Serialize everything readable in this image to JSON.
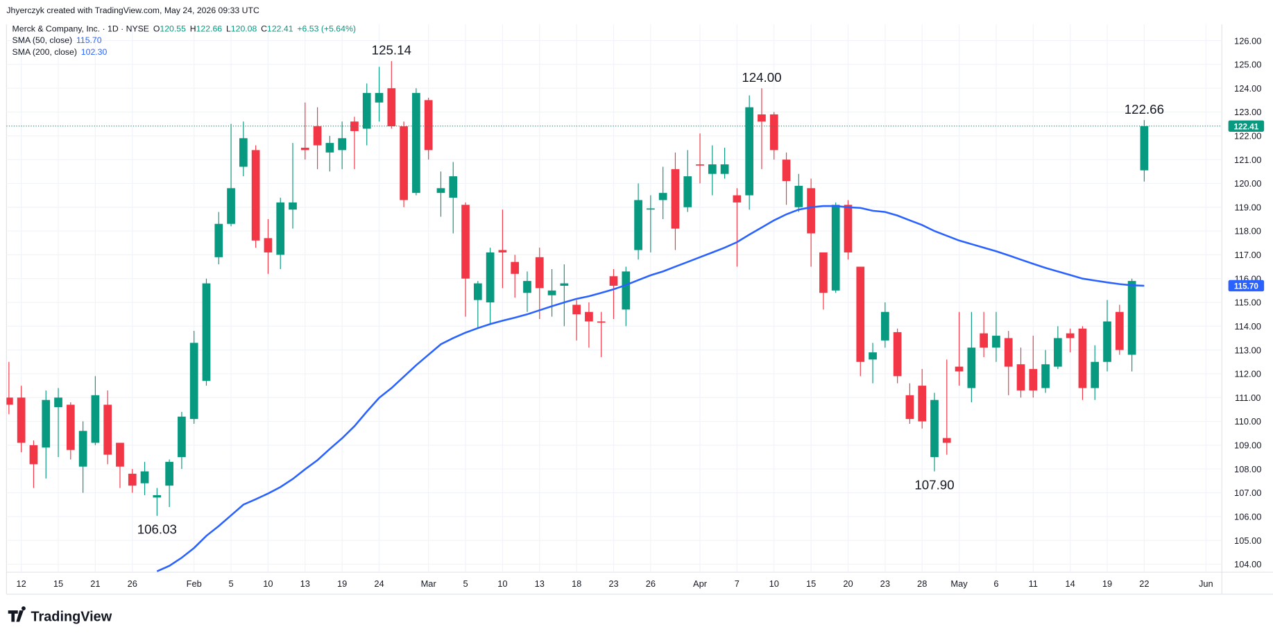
{
  "chart_data": {
    "type": "candlestick",
    "credit": "Jhyerczyk created with TradingView.com, May 24, 2026 09:33 UTC",
    "title": "Merck & Company, Inc. · 1D · NYSE",
    "ohlc_legend": [
      {
        "key": "O",
        "value": "120.55"
      },
      {
        "key": "H",
        "value": "122.66"
      },
      {
        "key": "L",
        "value": "120.08"
      },
      {
        "key": "C",
        "value": "122.41"
      }
    ],
    "change": "+6.53 (+5.64%)",
    "indicators": [
      {
        "name": "SMA (50, close)",
        "value": "115.70",
        "color": "#2962ff"
      },
      {
        "name": "SMA (200, close)",
        "value": "102.30",
        "color": "#2962ff"
      }
    ],
    "last_price_label": "122.41",
    "logo": "TradingView",
    "up_color": "#089981",
    "down_color": "#f23645",
    "categories": [
      null,
      "12",
      null,
      null,
      "15",
      null,
      null,
      "21",
      null,
      null,
      "26",
      null,
      null,
      null,
      null,
      "Feb",
      null,
      null,
      "5",
      null,
      null,
      "10",
      null,
      null,
      "13",
      null,
      null,
      "19",
      null,
      null,
      "24",
      null,
      null,
      null,
      "Mar",
      null,
      null,
      "5",
      null,
      null,
      "10",
      null,
      null,
      "13",
      null,
      null,
      "18",
      null,
      null,
      "23",
      null,
      null,
      "26",
      null,
      null,
      null,
      "Apr",
      null,
      null,
      "7",
      null,
      null,
      "10",
      null,
      null,
      "15",
      null,
      null,
      "20",
      null,
      null,
      "23",
      null,
      null,
      "28",
      null,
      null,
      "May",
      null,
      null,
      "6",
      null,
      null,
      "11",
      null,
      null,
      "14",
      null,
      null,
      "19",
      null,
      null,
      "22",
      null,
      null,
      null,
      null,
      "Jun"
    ],
    "open": [
      111.0,
      111.0,
      109.0,
      108.9,
      110.6,
      110.7,
      108.1,
      109.1,
      110.7,
      109.1,
      107.8,
      107.4,
      106.8,
      107.3,
      108.5,
      110.1,
      111.7,
      116.9,
      118.3,
      120.7,
      121.4,
      117.7,
      117.0,
      118.9,
      121.5,
      122.4,
      121.3,
      121.4,
      122.6,
      122.3,
      123.4,
      124.0,
      122.4,
      119.6,
      123.5,
      119.6,
      119.4,
      119.1,
      115.1,
      115.0,
      117.2,
      116.7,
      115.4,
      116.9,
      115.3,
      115.7,
      114.9,
      114.6,
      114.2,
      116.1,
      114.7,
      117.2,
      118.9,
      119.3,
      120.6,
      119.0,
      120.8,
      120.4,
      120.4,
      119.5,
      119.5,
      122.9,
      122.9,
      121.0,
      119.0,
      119.8,
      117.1,
      115.5,
      119.1,
      116.5,
      112.6,
      113.4,
      113.75,
      111.1,
      111.5,
      108.5,
      109.3,
      112.3,
      111.4,
      113.7,
      113.1,
      113.5,
      112.4,
      112.2,
      111.4,
      112.3,
      113.7,
      113.9,
      111.4,
      112.5,
      114.6,
      112.8,
      120.55,
      null,
      null,
      null,
      null,
      null
    ],
    "high": [
      112.5,
      111.5,
      109.2,
      111.3,
      111.4,
      110.8,
      110.0,
      111.9,
      111.3,
      109.1,
      108.0,
      108.3,
      107.2,
      108.4,
      110.4,
      113.8,
      116.0,
      118.8,
      122.5,
      122.6,
      121.6,
      118.5,
      119.4,
      121.7,
      123.4,
      123.2,
      122.0,
      122.6,
      122.8,
      124.2,
      124.9,
      125.14,
      122.6,
      124.0,
      123.6,
      120.5,
      120.9,
      119.2,
      115.9,
      117.3,
      118.9,
      117.0,
      116.3,
      117.3,
      116.4,
      116.6,
      115.1,
      115.0,
      114.6,
      116.4,
      116.5,
      120.0,
      119.5,
      120.7,
      121.3,
      121.4,
      122.1,
      121.6,
      121.5,
      119.8,
      123.7,
      124.0,
      123.0,
      121.3,
      120.4,
      120.2,
      117.1,
      119.2,
      119.3,
      116.5,
      113.3,
      115.0,
      113.9,
      111.6,
      112.2,
      111.2,
      112.6,
      114.6,
      114.6,
      114.6,
      114.6,
      113.8,
      113.1,
      113.6,
      113.0,
      114.0,
      113.9,
      114.0,
      113.2,
      115.1,
      114.9,
      116.0,
      122.66,
      null,
      null,
      null,
      null,
      null
    ],
    "low": [
      110.3,
      108.7,
      107.2,
      107.6,
      108.5,
      108.4,
      107.0,
      109.0,
      108.2,
      107.2,
      107.0,
      106.9,
      106.03,
      106.4,
      108.0,
      109.9,
      111.5,
      116.6,
      118.2,
      120.3,
      117.3,
      116.2,
      116.4,
      118.1,
      121.0,
      120.6,
      120.5,
      120.6,
      120.6,
      121.6,
      122.6,
      122.3,
      119.0,
      119.5,
      121.0,
      118.6,
      117.9,
      114.4,
      113.9,
      114.1,
      115.6,
      115.2,
      114.6,
      114.3,
      114.4,
      114.0,
      113.4,
      113.1,
      112.7,
      114.3,
      114.0,
      116.8,
      117.1,
      118.5,
      117.2,
      118.8,
      120.0,
      119.5,
      120.2,
      116.5,
      118.9,
      120.6,
      121.0,
      119.1,
      118.8,
      116.5,
      114.7,
      115.4,
      116.8,
      111.9,
      111.6,
      113.1,
      111.6,
      109.9,
      109.7,
      107.9,
      108.6,
      111.5,
      110.8,
      112.7,
      112.5,
      111.1,
      111.0,
      111.0,
      111.2,
      112.2,
      112.9,
      110.9,
      110.9,
      112.1,
      112.8,
      112.1,
      120.08,
      null,
      null,
      null,
      null,
      null
    ],
    "close": [
      110.7,
      109.1,
      108.2,
      110.9,
      111.0,
      108.8,
      109.6,
      111.1,
      108.6,
      108.1,
      107.3,
      107.9,
      106.9,
      108.3,
      110.2,
      113.3,
      115.8,
      118.3,
      119.8,
      121.9,
      117.6,
      117.1,
      119.2,
      119.2,
      121.4,
      121.6,
      121.7,
      121.9,
      122.2,
      123.8,
      123.8,
      122.4,
      119.3,
      123.8,
      121.4,
      119.8,
      120.3,
      116.0,
      115.8,
      117.1,
      117.1,
      116.2,
      115.9,
      115.6,
      115.5,
      115.8,
      114.5,
      114.2,
      114.15,
      115.7,
      116.3,
      119.3,
      118.95,
      119.6,
      118.1,
      120.3,
      120.75,
      120.8,
      120.8,
      119.2,
      123.2,
      122.6,
      121.4,
      120.1,
      119.9,
      117.9,
      115.4,
      119.1,
      117.1,
      112.5,
      112.9,
      114.6,
      111.9,
      110.1,
      110.0,
      110.9,
      109.1,
      112.1,
      113.1,
      113.1,
      113.6,
      112.3,
      111.3,
      111.3,
      112.4,
      113.5,
      113.5,
      111.4,
      112.5,
      114.2,
      113.0,
      115.9,
      122.41,
      null,
      null,
      null,
      null,
      null
    ],
    "sma50": [
      null,
      null,
      null,
      null,
      null,
      null,
      null,
      null,
      null,
      null,
      null,
      null,
      103.7,
      103.93,
      104.27,
      104.68,
      105.19,
      105.6,
      106.05,
      106.5,
      106.73,
      106.97,
      107.24,
      107.58,
      107.99,
      108.37,
      108.84,
      109.29,
      109.8,
      110.41,
      110.99,
      111.4,
      111.88,
      112.36,
      112.8,
      113.24,
      113.5,
      113.73,
      113.92,
      114.09,
      114.23,
      114.36,
      114.5,
      114.67,
      114.84,
      115.0,
      115.15,
      115.26,
      115.4,
      115.55,
      115.73,
      115.94,
      116.14,
      116.3,
      116.5,
      116.7,
      116.9,
      117.1,
      117.3,
      117.53,
      117.85,
      118.15,
      118.45,
      118.7,
      118.9,
      119.0,
      119.05,
      119.05,
      119.0,
      118.97,
      118.85,
      118.8,
      118.65,
      118.45,
      118.25,
      118.0,
      117.8,
      117.6,
      117.45,
      117.3,
      117.15,
      116.98,
      116.8,
      116.62,
      116.45,
      116.3,
      116.15,
      116.0,
      115.92,
      115.84,
      115.77,
      115.72,
      115.7,
      null,
      null,
      null,
      null,
      null
    ],
    "high_labels": [
      null,
      null,
      null,
      null,
      null,
      null,
      null,
      null,
      null,
      null,
      null,
      null,
      null,
      null,
      null,
      null,
      null,
      null,
      null,
      null,
      null,
      null,
      null,
      null,
      null,
      null,
      null,
      null,
      null,
      null,
      null,
      "125.14",
      null,
      null,
      null,
      null,
      null,
      null,
      null,
      null,
      null,
      null,
      null,
      null,
      null,
      null,
      null,
      null,
      null,
      null,
      null,
      null,
      null,
      null,
      null,
      null,
      null,
      null,
      null,
      null,
      null,
      "124.00",
      null,
      null,
      null,
      null,
      null,
      null,
      null,
      null,
      null,
      null,
      null,
      null,
      null,
      null,
      null,
      null,
      null,
      null,
      null,
      null,
      null,
      null,
      null,
      null,
      null,
      null,
      null,
      null,
      null,
      null,
      "122.66",
      null,
      null,
      null,
      null,
      null
    ],
    "low_labels": [
      null,
      null,
      null,
      null,
      null,
      null,
      null,
      null,
      null,
      null,
      null,
      null,
      "106.03",
      null,
      null,
      null,
      null,
      null,
      null,
      null,
      null,
      null,
      null,
      null,
      null,
      null,
      null,
      null,
      null,
      null,
      null,
      null,
      null,
      null,
      null,
      null,
      null,
      null,
      null,
      null,
      null,
      null,
      null,
      null,
      null,
      null,
      null,
      null,
      null,
      null,
      null,
      null,
      null,
      null,
      null,
      null,
      null,
      null,
      null,
      null,
      null,
      null,
      null,
      null,
      null,
      null,
      null,
      null,
      null,
      null,
      null,
      null,
      null,
      null,
      null,
      "107.90",
      null,
      null,
      null,
      null,
      null,
      null,
      null,
      null,
      null,
      null,
      null,
      null,
      null,
      null,
      null,
      null,
      null,
      null,
      null,
      null,
      null,
      null
    ],
    "ylim": [
      103.66,
      126.41
    ],
    "yticks": [
      {
        "value": 104,
        "label": "104.00"
      },
      {
        "value": 105,
        "label": "105.00"
      },
      {
        "value": 106,
        "label": "106.00"
      },
      {
        "value": 107,
        "label": "107.00"
      },
      {
        "value": 108,
        "label": "108.00"
      },
      {
        "value": 109,
        "label": "109.00"
      },
      {
        "value": 110,
        "label": "110.00"
      },
      {
        "value": 111,
        "label": "111.00"
      },
      {
        "value": 112,
        "label": "112.00"
      },
      {
        "value": 113,
        "label": "113.00"
      },
      {
        "value": 114,
        "label": "114.00"
      },
      {
        "value": 115,
        "label": "115.00"
      },
      {
        "value": 116,
        "label": "116.00"
      },
      {
        "value": 117,
        "label": "117.00"
      },
      {
        "value": 118,
        "label": "118.00"
      },
      {
        "value": 119,
        "label": "119.00"
      },
      {
        "value": 120,
        "label": "120.00"
      },
      {
        "value": 121,
        "label": "121.00"
      },
      {
        "value": 122,
        "label": "122.00"
      },
      {
        "value": 123,
        "label": "123.00"
      },
      {
        "value": 124,
        "label": "124.00"
      },
      {
        "value": 125,
        "label": "125.00"
      },
      {
        "value": 126,
        "label": "126.00"
      }
    ],
    "grid": true
  }
}
